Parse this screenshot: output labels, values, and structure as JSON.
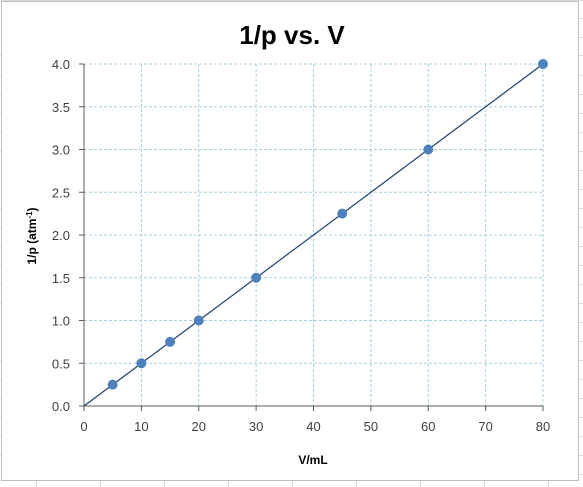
{
  "colors": {
    "series": "#4f81bd",
    "line": "#1f3f6e",
    "grid": "#a6cfe0",
    "axis": "#595959",
    "sheet_grid": "#d9d9d9"
  },
  "chart_data": {
    "type": "scatter",
    "title": "1/p vs. V",
    "xlabel": "V/mL",
    "ylabel": "1/p (atm",
    "ylabel_sup": "-1",
    "ylabel_close": ")",
    "xlim": [
      0,
      80
    ],
    "ylim": [
      0,
      4.0
    ],
    "x_ticks": [
      "0",
      "10",
      "20",
      "30",
      "40",
      "50",
      "60",
      "70",
      "80"
    ],
    "y_ticks": [
      "0.0",
      "0.5",
      "1.0",
      "1.5",
      "2.0",
      "2.5",
      "3.0",
      "3.5",
      "4.0"
    ],
    "grid": true,
    "legend": "none",
    "trendline": {
      "type": "linear",
      "x": [
        0,
        80
      ],
      "y": [
        0,
        4.0
      ]
    },
    "series": [
      {
        "x": [
          5,
          10,
          15,
          20,
          30,
          45,
          60,
          80
        ],
        "y": [
          0.25,
          0.5,
          0.75,
          1.0,
          1.5,
          2.25,
          3.0,
          4.0
        ]
      }
    ]
  }
}
